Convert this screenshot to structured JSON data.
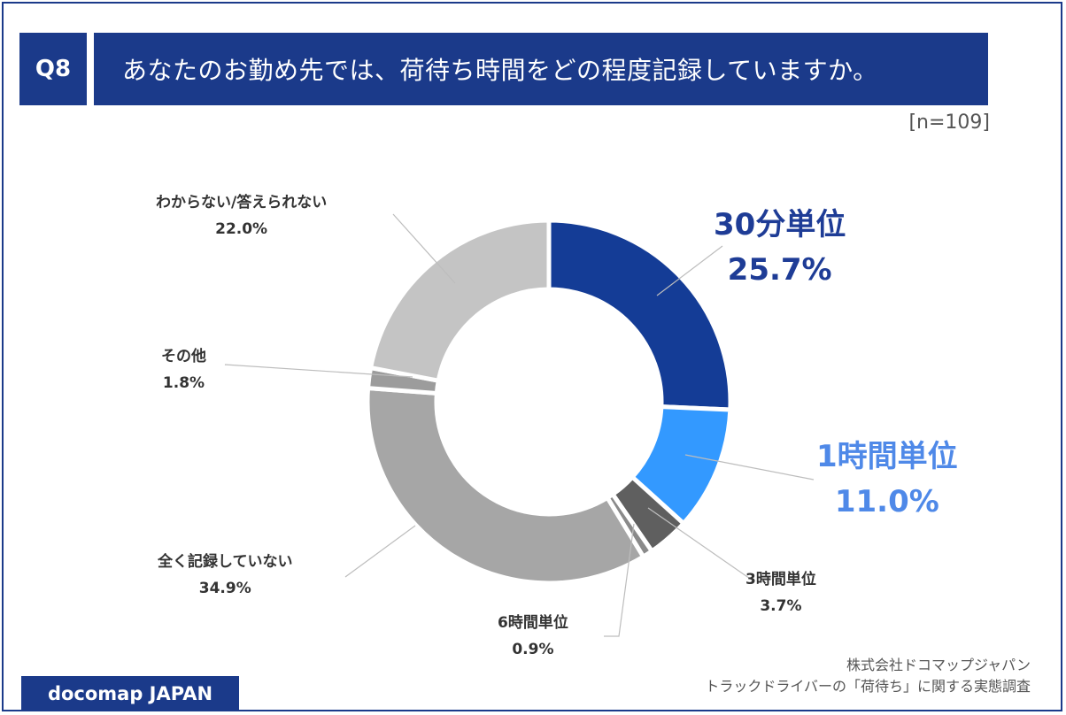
{
  "header": {
    "q_number": "Q8",
    "question": "あなたのお勤め先では、荷待ち時間をどの程度記録していますか。"
  },
  "sample": "[n=109]",
  "chart_data": {
    "type": "pie",
    "donut": true,
    "slices": [
      {
        "label": "30分単位",
        "value": 25.7,
        "display": "25.7%",
        "color": "#143c96"
      },
      {
        "label": "1時間単位",
        "value": 11.0,
        "display": "11.0%",
        "color": "#3399ff"
      },
      {
        "label": "3時間単位",
        "value": 3.7,
        "display": "3.7%",
        "color": "#5f5f5f"
      },
      {
        "label": "6時間単位",
        "value": 0.9,
        "display": "0.9%",
        "color": "#8a8a8a"
      },
      {
        "label": "全く記録していない",
        "value": 34.9,
        "display": "34.9%",
        "color": "#a6a6a6"
      },
      {
        "label": "その他",
        "value": 1.8,
        "display": "1.8%",
        "color": "#9c9c9c"
      },
      {
        "label": "わからない/答えられない",
        "value": 22.0,
        "display": "22.0%",
        "color": "#c4c4c4"
      }
    ]
  },
  "footer": {
    "logo": "docomap JAPAN",
    "credit_line1": "株式会社ドコマップジャパン",
    "credit_line2": "トラックドライバーの「荷待ち」に関する実態調査"
  }
}
